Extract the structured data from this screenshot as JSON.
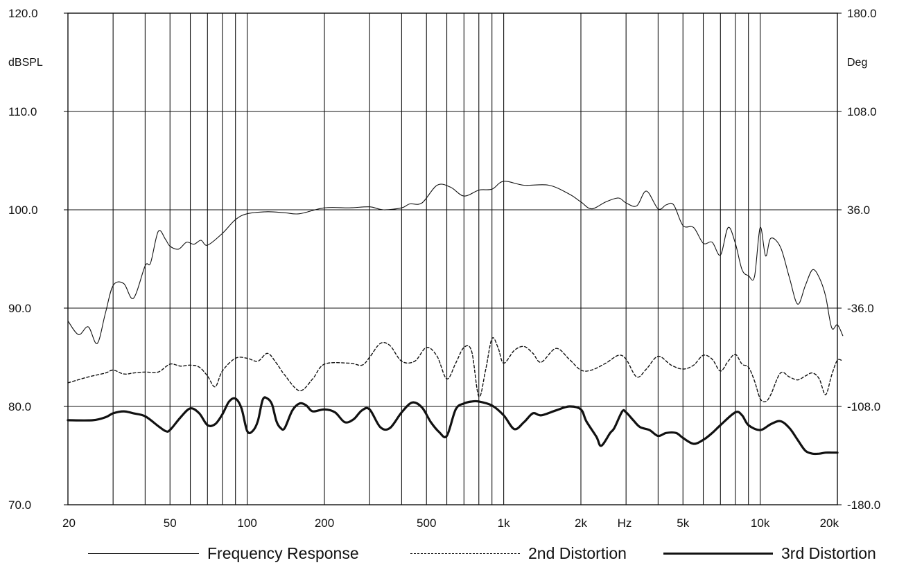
{
  "chart_data": {
    "type": "line",
    "x_scale": "log",
    "xlim": [
      20,
      20000
    ],
    "ylim": [
      70,
      120
    ],
    "y2lim": [
      -180,
      180
    ],
    "grid": true,
    "ylabel": "dBSPL",
    "y2label": "Deg",
    "x_unit_label": "Hz",
    "legend_position": "bottom",
    "x_tick_labels": [
      {
        "value": 20,
        "label": "20"
      },
      {
        "value": 50,
        "label": "50"
      },
      {
        "value": 100,
        "label": "100"
      },
      {
        "value": 200,
        "label": "200"
      },
      {
        "value": 500,
        "label": "500"
      },
      {
        "value": 1000,
        "label": "1k"
      },
      {
        "value": 2000,
        "label": "2k"
      },
      {
        "value": 5000,
        "label": "5k"
      },
      {
        "value": 10000,
        "label": "10k"
      },
      {
        "value": 20000,
        "label": "20k"
      }
    ],
    "y_tick_labels": [
      {
        "value": 120,
        "label": "120.0"
      },
      {
        "value": 110,
        "label": "110.0"
      },
      {
        "value": 100,
        "label": "100.0"
      },
      {
        "value": 90,
        "label": "90.0"
      },
      {
        "value": 80,
        "label": "80.0"
      },
      {
        "value": 70,
        "label": "70.0"
      }
    ],
    "y2_tick_labels": [
      {
        "value": 180,
        "label": "180.0"
      },
      {
        "value": 108,
        "label": "108.0"
      },
      {
        "value": 36,
        "label": "36.0"
      },
      {
        "value": -36,
        "label": "-36.0"
      },
      {
        "value": -108,
        "label": "-108.0"
      },
      {
        "value": -180,
        "label": "-180.0"
      }
    ],
    "series": [
      {
        "name": "Frequency Response",
        "style": "thin",
        "x": [
          20,
          22,
          24,
          26,
          28,
          30,
          33,
          36,
          40,
          42,
          45,
          48,
          50,
          54,
          58,
          62,
          66,
          70,
          80,
          90,
          100,
          120,
          140,
          160,
          200,
          250,
          300,
          340,
          400,
          430,
          480,
          550,
          620,
          700,
          800,
          900,
          1000,
          1200,
          1500,
          1800,
          2000,
          2200,
          2500,
          2800,
          3000,
          3300,
          3600,
          4000,
          4300,
          4600,
          5000,
          5500,
          6000,
          6500,
          7000,
          7500,
          8000,
          8500,
          9000,
          9500,
          10000,
          10500,
          11000,
          12000,
          13000,
          14000,
          15000,
          16000,
          17000,
          18000,
          19000,
          20000,
          21000
        ],
        "y": [
          88.7,
          87.3,
          88.1,
          86.4,
          89.5,
          92.3,
          92.5,
          91.0,
          94.3,
          94.6,
          97.8,
          97.0,
          96.3,
          96.0,
          96.7,
          96.5,
          96.9,
          96.4,
          97.6,
          99.0,
          99.6,
          99.8,
          99.7,
          99.6,
          100.2,
          100.2,
          100.3,
          100.0,
          100.2,
          100.6,
          100.7,
          102.5,
          102.3,
          101.4,
          102.0,
          102.1,
          102.9,
          102.5,
          102.5,
          101.6,
          100.8,
          100.1,
          100.8,
          101.2,
          100.7,
          100.4,
          101.9,
          100.1,
          100.5,
          100.5,
          98.4,
          98.2,
          96.6,
          96.7,
          95.4,
          98.2,
          96.6,
          93.9,
          93.3,
          93.2,
          98.2,
          95.3,
          97.1,
          96.2,
          93.1,
          90.4,
          92.3,
          93.9,
          93.1,
          91.2,
          88.0,
          88.3,
          87.2
        ]
      },
      {
        "name": "2nd Distortion",
        "style": "dashed",
        "x": [
          20,
          24,
          28,
          30,
          33,
          36,
          40,
          45,
          50,
          55,
          60,
          65,
          70,
          75,
          80,
          90,
          100,
          110,
          120,
          130,
          140,
          160,
          180,
          200,
          250,
          280,
          300,
          330,
          360,
          400,
          450,
          500,
          550,
          600,
          650,
          700,
          750,
          800,
          850,
          900,
          950,
          1000,
          1100,
          1200,
          1300,
          1400,
          1600,
          1800,
          2000,
          2200,
          2500,
          2800,
          3000,
          3300,
          3600,
          4000,
          4500,
          5000,
          5500,
          6000,
          6500,
          7000,
          7500,
          8000,
          8500,
          9000,
          9500,
          10000,
          10500,
          11000,
          12000,
          13000,
          14000,
          15000,
          16000,
          17000,
          18000,
          19000,
          20000,
          21000
        ],
        "y": [
          82.4,
          83.0,
          83.4,
          83.7,
          83.3,
          83.4,
          83.5,
          83.5,
          84.3,
          84.1,
          84.2,
          84.0,
          83.1,
          82.0,
          83.6,
          84.9,
          84.9,
          84.6,
          85.4,
          84.4,
          83.2,
          81.6,
          82.8,
          84.3,
          84.4,
          84.2,
          85.0,
          86.4,
          86.2,
          84.6,
          84.6,
          86.0,
          85.1,
          82.8,
          84.4,
          86.0,
          85.6,
          81.0,
          83.7,
          86.9,
          86.0,
          84.4,
          85.7,
          86.1,
          85.4,
          84.5,
          85.9,
          84.8,
          83.7,
          83.7,
          84.4,
          85.2,
          84.8,
          83.0,
          83.8,
          85.1,
          84.2,
          83.8,
          84.2,
          85.2,
          84.8,
          83.6,
          84.6,
          85.3,
          84.3,
          84.0,
          82.6,
          80.8,
          80.5,
          81.2,
          83.4,
          83.0,
          82.7,
          83.1,
          83.4,
          82.8,
          81.2,
          83.2,
          84.7,
          84.6
        ]
      },
      {
        "name": "3rd Distortion",
        "style": "thick",
        "x": [
          20,
          25,
          28,
          30,
          33,
          36,
          40,
          45,
          48,
          50,
          55,
          60,
          65,
          70,
          75,
          80,
          85,
          90,
          95,
          100,
          105,
          110,
          115,
          120,
          125,
          130,
          135,
          140,
          150,
          160,
          170,
          180,
          200,
          220,
          240,
          260,
          280,
          300,
          330,
          360,
          400,
          440,
          480,
          520,
          560,
          600,
          650,
          700,
          750,
          800,
          900,
          1000,
          1100,
          1200,
          1300,
          1400,
          1600,
          1800,
          2000,
          2100,
          2300,
          2400,
          2600,
          2700,
          2900,
          3000,
          3200,
          3400,
          3700,
          4000,
          4300,
          4700,
          5000,
          5500,
          6000,
          6500,
          7000,
          8000,
          8500,
          9000,
          10000,
          11000,
          12000,
          13000,
          14000,
          15000,
          16000,
          17000,
          18000,
          19000,
          20000
        ],
        "y": [
          78.6,
          78.6,
          78.9,
          79.3,
          79.5,
          79.3,
          79.0,
          78.0,
          77.5,
          77.6,
          78.9,
          79.8,
          79.3,
          78.1,
          78.2,
          79.2,
          80.5,
          80.8,
          79.8,
          77.5,
          77.5,
          78.5,
          80.7,
          80.8,
          80.2,
          78.5,
          77.8,
          77.8,
          79.6,
          80.3,
          80.1,
          79.5,
          79.7,
          79.4,
          78.4,
          78.7,
          79.6,
          79.7,
          77.9,
          77.8,
          79.4,
          80.4,
          79.9,
          78.4,
          77.4,
          77.0,
          79.7,
          80.3,
          80.5,
          80.5,
          80.1,
          79.1,
          77.7,
          78.4,
          79.3,
          79.1,
          79.6,
          80.0,
          79.7,
          78.5,
          76.9,
          76.0,
          77.3,
          77.8,
          79.5,
          79.4,
          78.6,
          77.9,
          77.6,
          77.0,
          77.3,
          77.3,
          76.8,
          76.2,
          76.6,
          77.3,
          78.1,
          79.4,
          79.1,
          78.1,
          77.6,
          78.2,
          78.5,
          77.8,
          76.6,
          75.5,
          75.2,
          75.2,
          75.3,
          75.3,
          75.3
        ]
      }
    ]
  }
}
